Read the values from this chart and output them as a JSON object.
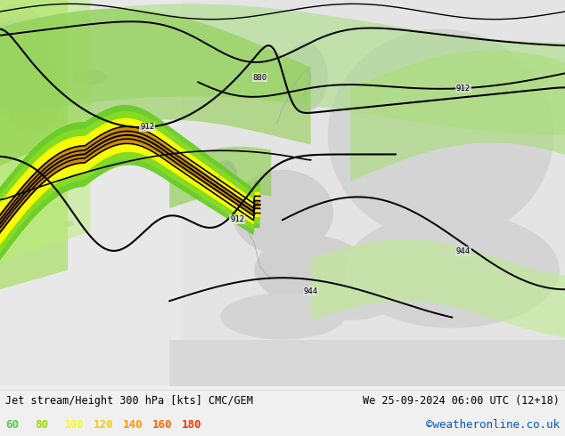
{
  "title_left": "Jet stream/Height 300 hPa [kts] CMC/GEM",
  "title_right": "We 25-09-2024 06:00 UTC (12+18)",
  "credit": "©weatheronline.co.uk",
  "legend_values": [
    60,
    80,
    100,
    120,
    140,
    160,
    180
  ],
  "legend_colors": [
    "#55cc44",
    "#99dd00",
    "#ffff00",
    "#ffcc00",
    "#ff9900",
    "#ff6600",
    "#ff3300"
  ],
  "figsize": [
    6.34,
    4.9
  ],
  "dpi": 100,
  "bg_land": "#e8e8e8",
  "bg_sea": "#f0f0f0",
  "green_light": "#c8f0a0",
  "green_mid": "#88cc44",
  "green_dark": "#44aa00",
  "contour_color": "#000000",
  "credit_color": "#0055cc"
}
